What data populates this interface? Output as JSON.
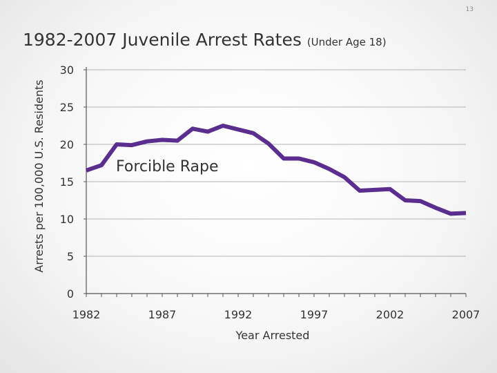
{
  "slide": {
    "page_number": "13"
  },
  "chart_data": {
    "type": "line",
    "title": "1982-2007 Juvenile Arrest Rates",
    "subtitle": "(Under Age 18)",
    "xlabel": "Year Arrested",
    "ylabel": "Arrests per 100,000 U.S. Residents",
    "xlim": [
      1982,
      2007
    ],
    "ylim": [
      0,
      30
    ],
    "x_ticks": [
      1982,
      1987,
      1992,
      1997,
      2002,
      2007
    ],
    "y_ticks": [
      0,
      5,
      10,
      15,
      20,
      25,
      30
    ],
    "grid": true,
    "series": [
      {
        "name": "Forcible Rape",
        "color": "#5b2d8e",
        "x": [
          1982,
          1983,
          1984,
          1985,
          1986,
          1987,
          1988,
          1989,
          1990,
          1991,
          1992,
          1993,
          1994,
          1995,
          1996,
          1997,
          1998,
          1999,
          2000,
          2001,
          2002,
          2003,
          2004,
          2005,
          2006,
          2007
        ],
        "y": [
          16.5,
          17.2,
          20.0,
          19.9,
          20.4,
          20.6,
          20.5,
          22.1,
          21.7,
          22.5,
          22.0,
          21.5,
          20.1,
          18.1,
          18.1,
          17.6,
          16.7,
          15.6,
          13.8,
          13.9,
          14.0,
          12.5,
          12.4,
          11.5,
          10.7,
          10.8
        ]
      }
    ]
  }
}
